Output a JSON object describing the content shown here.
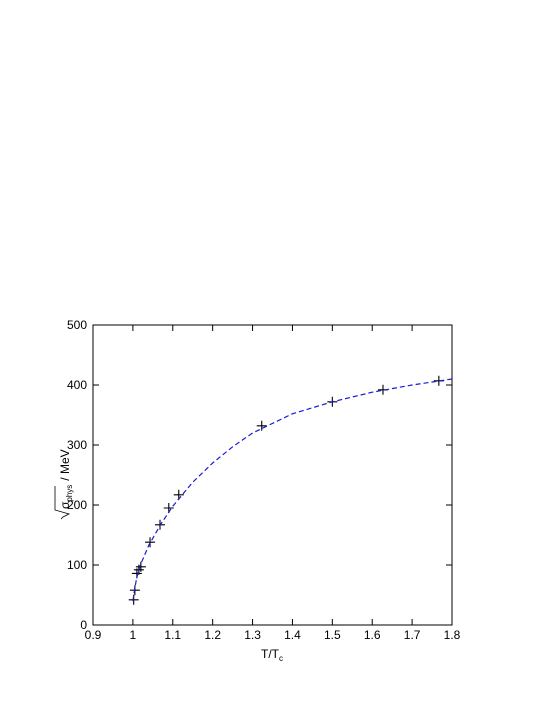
{
  "chart_data": {
    "type": "scatter",
    "xlabel": "T/T",
    "xlabel_sub": "c",
    "ylabel": "σ",
    "ylabel_sub": "phys",
    "ylabel_unit": "/ MeV",
    "series": [
      {
        "color": "#000000",
        "marker": "plus",
        "x": [
          1.002,
          1.005,
          1.01,
          1.015,
          1.02,
          1.043,
          1.068,
          1.09,
          1.115,
          1.323,
          1.5,
          1.627,
          1.767
        ],
        "values": [
          42,
          58,
          86,
          92,
          97,
          138,
          167,
          195,
          217,
          332,
          372,
          392,
          407
        ]
      },
      {
        "color": "#1a1ad6",
        "line": "dashed",
        "x": [
          1.0,
          1.005,
          1.01,
          1.02,
          1.04,
          1.07,
          1.1,
          1.15,
          1.2,
          1.25,
          1.3,
          1.4,
          1.5,
          1.6,
          1.7,
          1.8
        ],
        "values": [
          40,
          62,
          80,
          102,
          133,
          168,
          198,
          238,
          270,
          297,
          320,
          352,
          372,
          388,
          400,
          410
        ]
      }
    ],
    "xlim": [
      0.9,
      1.8
    ],
    "xticks": [
      0.9,
      1,
      1.1,
      1.2,
      1.3,
      1.4,
      1.5,
      1.6,
      1.7,
      1.8
    ],
    "ylim": [
      0,
      500
    ],
    "yticks": [
      0,
      100,
      200,
      300,
      400,
      500
    ]
  }
}
